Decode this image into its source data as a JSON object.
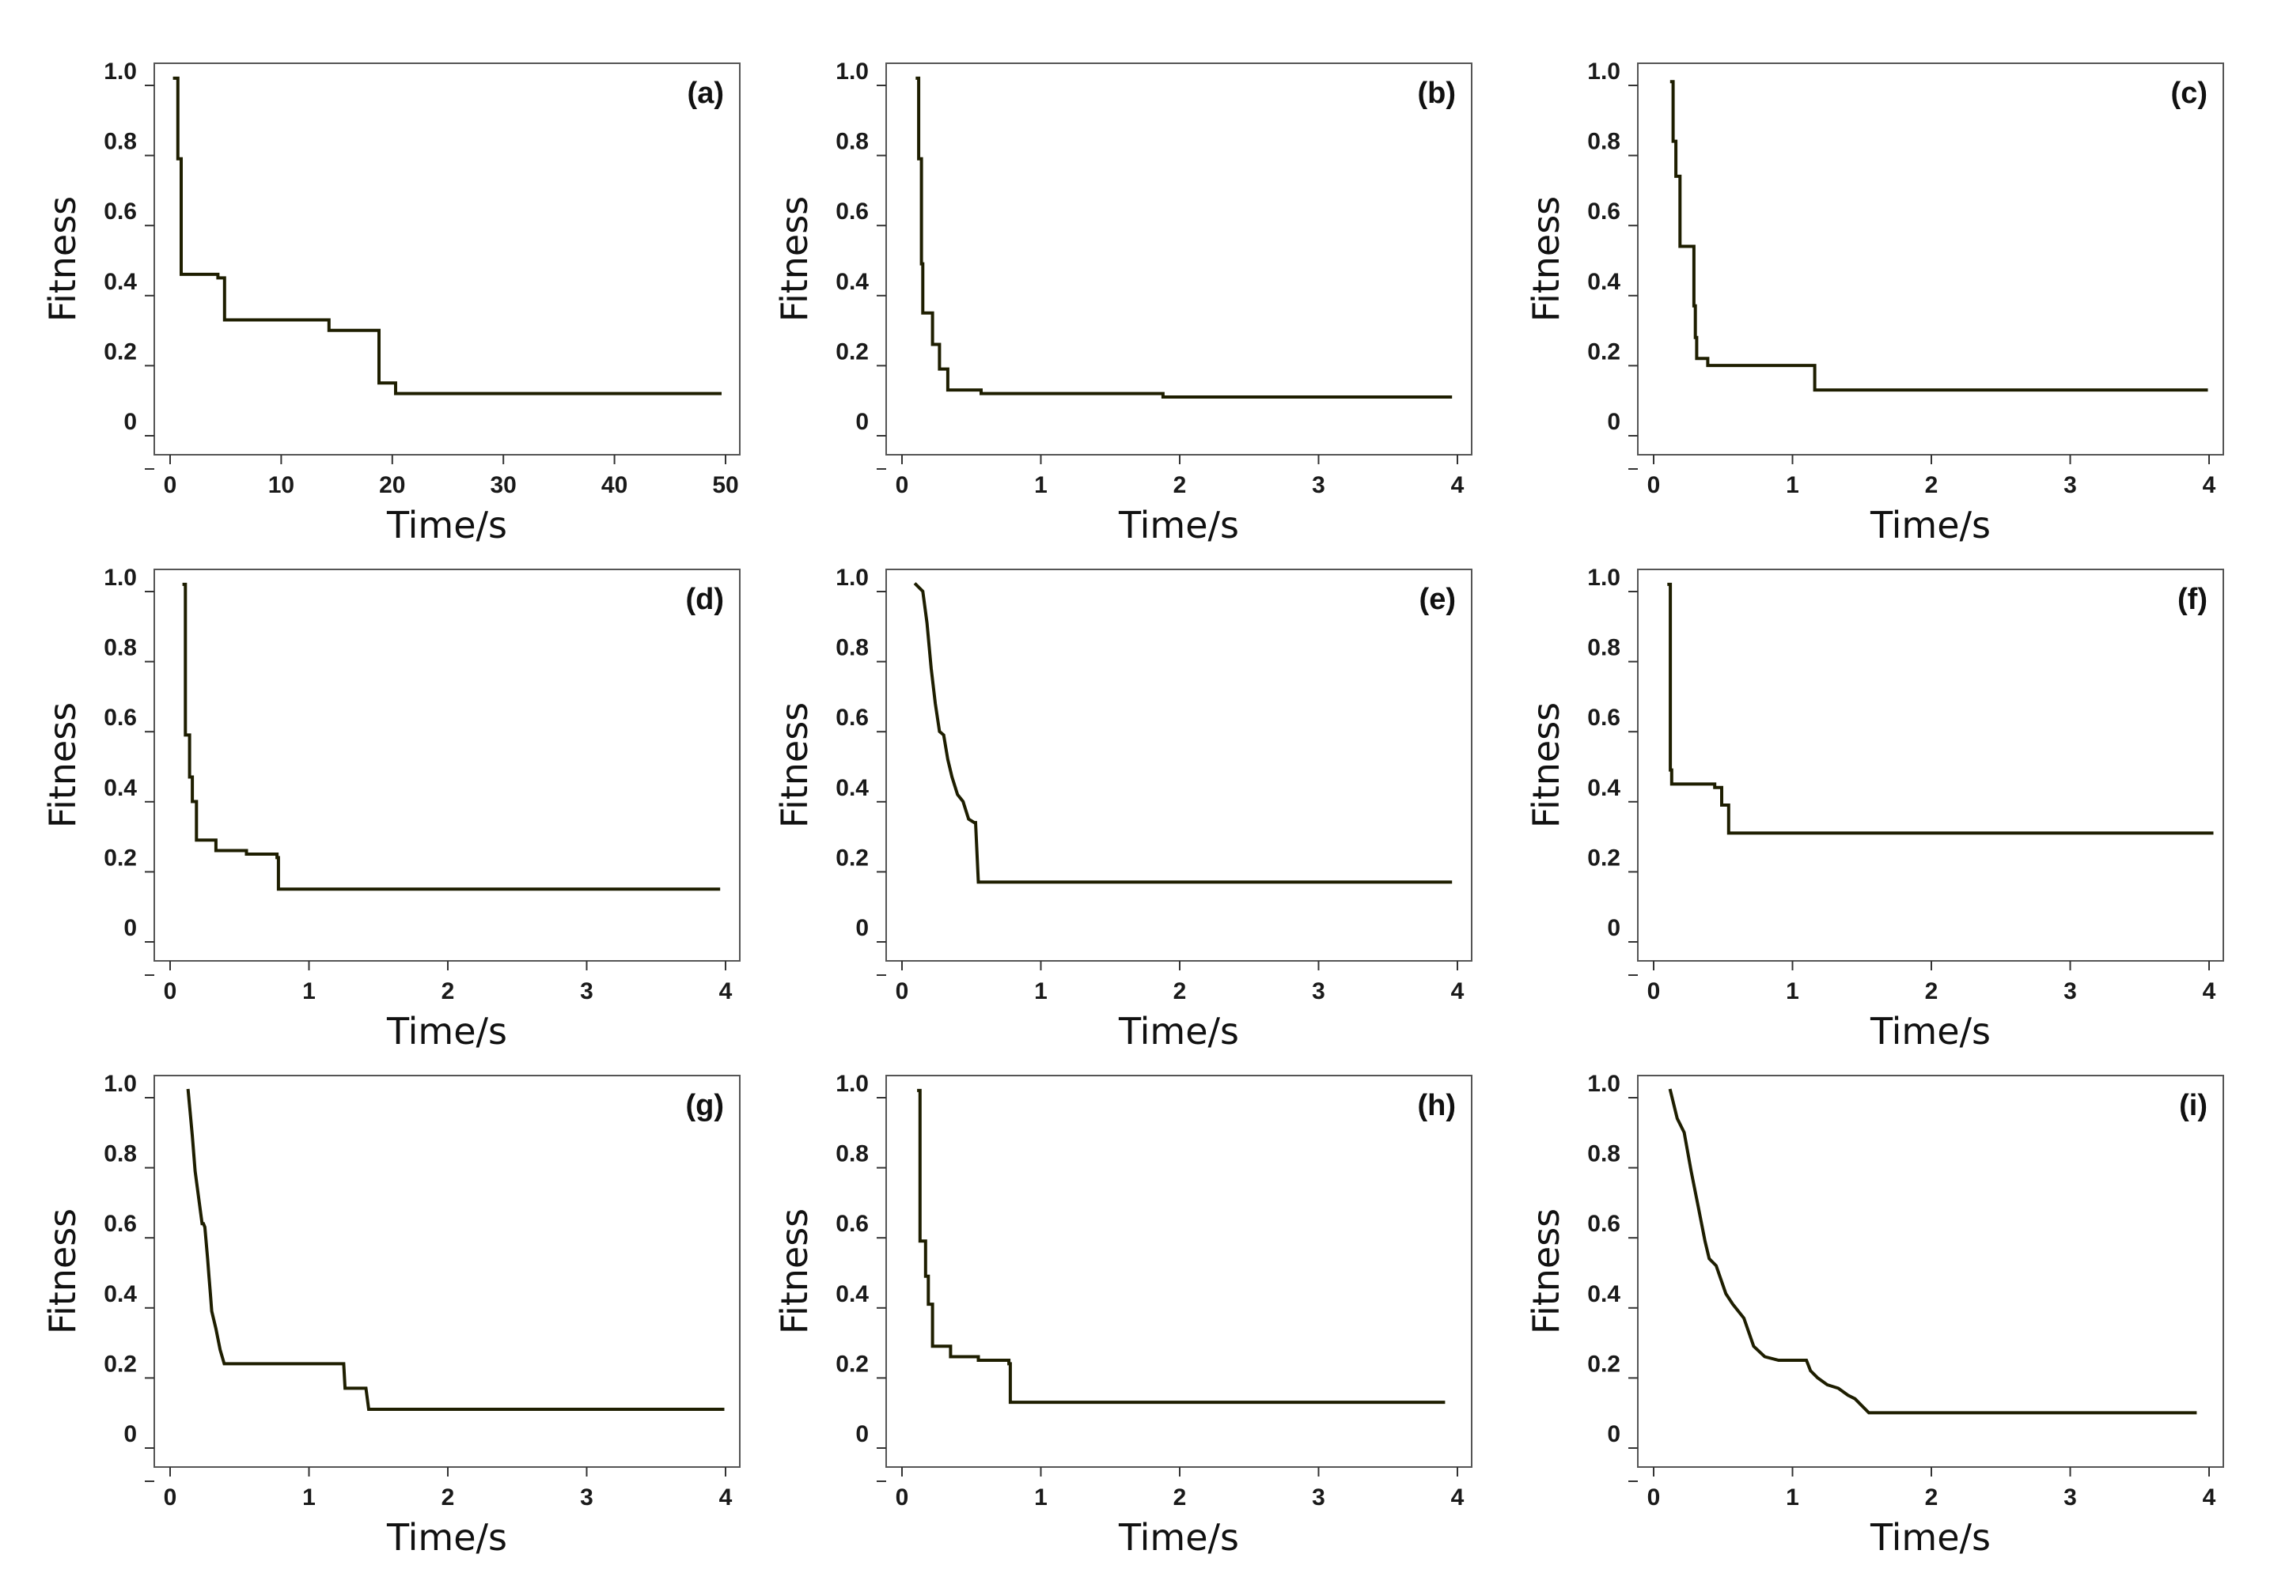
{
  "figure": {
    "line_color": "#1e1e00",
    "frame_color": "#555555"
  },
  "chart_data": [
    {
      "type": "line",
      "label": "(a)",
      "xlabel": "Time/s",
      "ylabel": "Fitness",
      "xlim": [
        0,
        50
      ],
      "ylim": [
        -0.1,
        1.0
      ],
      "xticks": [
        0,
        10,
        20,
        30,
        40,
        50
      ],
      "xtick_labels": [
        "0",
        "10",
        "20",
        "30",
        "40",
        "50"
      ],
      "yticks": [
        0,
        0.2,
        0.4,
        0.6,
        0.8,
        1.0
      ],
      "ytick_labels": [
        "0",
        "0.2",
        "0.4",
        "0.6",
        "0.8",
        "1.0"
      ],
      "series": [
        {
          "name": "fitness",
          "step": true,
          "x": [
            0.4,
            0.7,
            1.0,
            4.3,
            4.9,
            13.8,
            14.3,
            18.8,
            19.9,
            20.3,
            49.5
          ],
          "y": [
            0.98,
            0.75,
            0.42,
            0.41,
            0.29,
            0.29,
            0.26,
            0.11,
            0.11,
            0.08,
            0.08
          ]
        }
      ]
    },
    {
      "type": "line",
      "label": "(b)",
      "xlabel": "Time/s",
      "ylabel": "Fitness",
      "xlim": [
        0,
        4
      ],
      "ylim": [
        -0.1,
        1.0
      ],
      "xticks": [
        0,
        1,
        2,
        3,
        4
      ],
      "xtick_labels": [
        "0",
        "1",
        "2",
        "3",
        "4"
      ],
      "yticks": [
        0,
        0.2,
        0.4,
        0.6,
        0.8,
        1.0
      ],
      "ytick_labels": [
        "0",
        "0.2",
        "0.4",
        "0.6",
        "0.8",
        "1.0"
      ],
      "series": [
        {
          "name": "fitness",
          "step": true,
          "x": [
            0.11,
            0.12,
            0.14,
            0.15,
            0.22,
            0.27,
            0.33,
            0.57,
            1.88,
            3.95
          ],
          "y": [
            0.98,
            0.75,
            0.45,
            0.31,
            0.22,
            0.15,
            0.09,
            0.08,
            0.07,
            0.07
          ]
        }
      ]
    },
    {
      "type": "line",
      "label": "(c)",
      "xlabel": "Time/s",
      "ylabel": "Fitness",
      "xlim": [
        0,
        4
      ],
      "ylim": [
        -0.1,
        1.0
      ],
      "xticks": [
        0,
        1,
        2,
        3,
        4
      ],
      "xtick_labels": [
        "0",
        "1",
        "2",
        "3",
        "4"
      ],
      "yticks": [
        0,
        0.2,
        0.4,
        0.6,
        0.8,
        1.0
      ],
      "ytick_labels": [
        "0",
        "0.2",
        "0.4",
        "0.6",
        "0.8",
        "1.0"
      ],
      "series": [
        {
          "name": "fitness",
          "step": true,
          "x": [
            0.13,
            0.14,
            0.16,
            0.19,
            0.29,
            0.3,
            0.31,
            0.39,
            1.16,
            3.98
          ],
          "y": [
            0.97,
            0.8,
            0.7,
            0.5,
            0.33,
            0.24,
            0.18,
            0.16,
            0.09,
            0.09
          ]
        }
      ]
    },
    {
      "type": "line",
      "label": "(d)",
      "xlabel": "Time/s",
      "ylabel": "Fitness",
      "xlim": [
        0,
        4
      ],
      "ylim": [
        -0.1,
        1.0
      ],
      "xticks": [
        0,
        1,
        2,
        3,
        4
      ],
      "xtick_labels": [
        "0",
        "1",
        "2",
        "3",
        "4"
      ],
      "yticks": [
        0,
        0.2,
        0.4,
        0.6,
        0.8,
        1.0
      ],
      "ytick_labels": [
        "0",
        "0.2",
        "0.4",
        "0.6",
        "0.8",
        "1.0"
      ],
      "series": [
        {
          "name": "fitness",
          "step": true,
          "x": [
            0.1,
            0.11,
            0.14,
            0.16,
            0.19,
            0.33,
            0.55,
            0.77,
            0.78,
            3.95
          ],
          "y": [
            0.98,
            0.55,
            0.43,
            0.36,
            0.25,
            0.22,
            0.21,
            0.2,
            0.11,
            0.11
          ]
        }
      ]
    },
    {
      "type": "line",
      "label": "(e)",
      "xlabel": "Time/s",
      "ylabel": "Fitness",
      "xlim": [
        0,
        4
      ],
      "ylim": [
        -0.1,
        1.0
      ],
      "xticks": [
        0,
        1,
        2,
        3,
        4
      ],
      "xtick_labels": [
        "0",
        "1",
        "2",
        "3",
        "4"
      ],
      "yticks": [
        0,
        0.2,
        0.4,
        0.6,
        0.8,
        1.0
      ],
      "ytick_labels": [
        "0",
        "0.2",
        "0.4",
        "0.6",
        "0.8",
        "1.0"
      ],
      "series": [
        {
          "name": "fitness",
          "step": false,
          "x": [
            0.1,
            0.15,
            0.18,
            0.21,
            0.24,
            0.27,
            0.3,
            0.33,
            0.36,
            0.4,
            0.44,
            0.48,
            0.52,
            0.53,
            0.55,
            3.95
          ],
          "y": [
            0.98,
            0.96,
            0.87,
            0.74,
            0.64,
            0.56,
            0.55,
            0.48,
            0.43,
            0.38,
            0.36,
            0.31,
            0.3,
            0.3,
            0.13,
            0.13
          ]
        }
      ]
    },
    {
      "type": "line",
      "label": "(f)",
      "xlabel": "Time/s",
      "ylabel": "Fitness",
      "xlim": [
        0,
        4
      ],
      "ylim": [
        -0.1,
        1.0
      ],
      "xticks": [
        0,
        1,
        2,
        3,
        4
      ],
      "xtick_labels": [
        "0",
        "1",
        "2",
        "3",
        "4"
      ],
      "yticks": [
        0,
        0.2,
        0.4,
        0.6,
        0.8,
        1.0
      ],
      "ytick_labels": [
        "0",
        "0.2",
        "0.4",
        "0.6",
        "0.8",
        "1.0"
      ],
      "series": [
        {
          "name": "fitness",
          "step": true,
          "x": [
            0.11,
            0.12,
            0.13,
            0.44,
            0.49,
            0.54,
            4.02
          ],
          "y": [
            0.98,
            0.45,
            0.41,
            0.4,
            0.35,
            0.27,
            0.27
          ]
        }
      ]
    },
    {
      "type": "line",
      "label": "(g)",
      "xlabel": "Time/s",
      "ylabel": "Fitness",
      "xlim": [
        0,
        4
      ],
      "ylim": [
        -0.1,
        1.0
      ],
      "xticks": [
        0,
        1,
        2,
        3,
        4
      ],
      "xtick_labels": [
        "0",
        "1",
        "2",
        "3",
        "4"
      ],
      "yticks": [
        0,
        0.2,
        0.4,
        0.6,
        0.8,
        1.0
      ],
      "ytick_labels": [
        "0",
        "0.2",
        "0.4",
        "0.6",
        "0.8",
        "1.0"
      ],
      "series": [
        {
          "name": "fitness",
          "step": false,
          "x": [
            0.13,
            0.16,
            0.18,
            0.23,
            0.24,
            0.25,
            0.27,
            0.28,
            0.29,
            0.3,
            0.33,
            0.36,
            0.39,
            1.25,
            1.26,
            1.41,
            1.43,
            3.98
          ],
          "y": [
            0.98,
            0.85,
            0.75,
            0.6,
            0.6,
            0.59,
            0.5,
            0.45,
            0.4,
            0.35,
            0.3,
            0.24,
            0.2,
            0.2,
            0.13,
            0.13,
            0.07,
            0.07
          ]
        }
      ]
    },
    {
      "type": "line",
      "label": "(h)",
      "xlabel": "Time/s",
      "ylabel": "Fitness",
      "xlim": [
        0,
        4
      ],
      "ylim": [
        -0.1,
        1.0
      ],
      "xticks": [
        0,
        1,
        2,
        3,
        4
      ],
      "xtick_labels": [
        "0",
        "1",
        "2",
        "3",
        "4"
      ],
      "yticks": [
        0,
        0.2,
        0.4,
        0.6,
        0.8,
        1.0
      ],
      "ytick_labels": [
        "0",
        "0.2",
        "0.4",
        "0.6",
        "0.8",
        "1.0"
      ],
      "series": [
        {
          "name": "fitness",
          "step": true,
          "x": [
            0.12,
            0.13,
            0.17,
            0.19,
            0.22,
            0.35,
            0.55,
            0.77,
            0.78,
            3.9
          ],
          "y": [
            0.98,
            0.55,
            0.45,
            0.37,
            0.25,
            0.22,
            0.21,
            0.2,
            0.09,
            0.09
          ]
        }
      ]
    },
    {
      "type": "line",
      "label": "(i)",
      "xlabel": "Time/s",
      "ylabel": "Fitness",
      "xlim": [
        0,
        4
      ],
      "ylim": [
        -0.1,
        1.0
      ],
      "xticks": [
        0,
        1,
        2,
        3,
        4
      ],
      "xtick_labels": [
        "0",
        "1",
        "2",
        "3",
        "4"
      ],
      "yticks": [
        0,
        0.2,
        0.4,
        0.6,
        0.8,
        1.0
      ],
      "ytick_labels": [
        "0",
        "0.2",
        "0.4",
        "0.6",
        "0.8",
        "1.0"
      ],
      "series": [
        {
          "name": "fitness",
          "step": false,
          "x": [
            0.12,
            0.17,
            0.22,
            0.27,
            0.32,
            0.37,
            0.4,
            0.45,
            0.52,
            0.57,
            0.65,
            0.72,
            0.8,
            0.9,
            1.1,
            1.13,
            1.18,
            1.25,
            1.33,
            1.4,
            1.45,
            1.5,
            1.55,
            3.9
          ],
          "y": [
            0.98,
            0.9,
            0.86,
            0.75,
            0.65,
            0.55,
            0.5,
            0.48,
            0.4,
            0.37,
            0.33,
            0.25,
            0.22,
            0.21,
            0.21,
            0.18,
            0.16,
            0.14,
            0.13,
            0.11,
            0.1,
            0.08,
            0.06,
            0.06
          ]
        }
      ]
    }
  ]
}
